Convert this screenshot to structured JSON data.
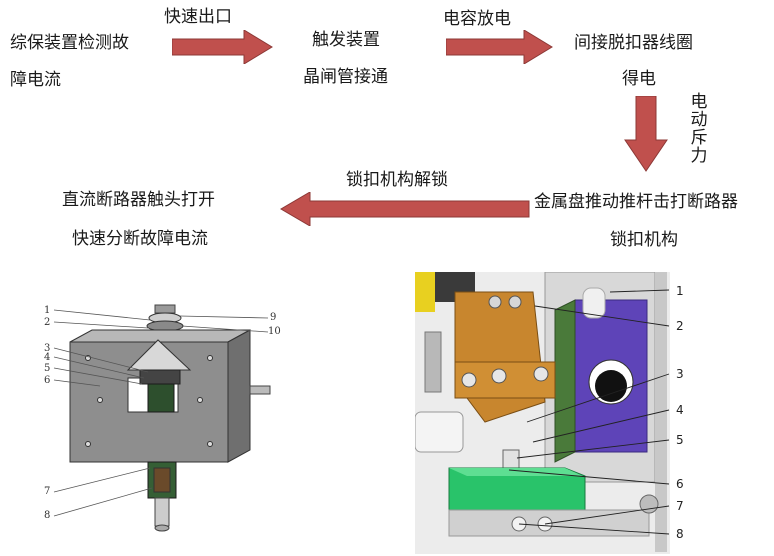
{
  "flow": {
    "step1_line1": "综保装置检测故",
    "step1_line2": "障电流",
    "arrow1_label": "快速出口",
    "step2_line1": "触发装置",
    "step2_line2": "晶闸管接通",
    "arrow2_label": "电容放电",
    "step3_line1": "间接脱扣器线圈",
    "step3_line2": "得电",
    "arrow3_label": [
      "电",
      "动",
      "斥",
      "力"
    ],
    "step4_line1": "金属盘推动推杆击打断路器",
    "step4_line2": "锁扣机构",
    "arrow4_label": "锁扣机构解锁",
    "step5_line1": "直流断路器触头打开",
    "step5_line2": "快速分断故障电流"
  },
  "left_figure": {
    "labels": [
      "1",
      "2",
      "3",
      "4",
      "5",
      "6",
      "7",
      "8",
      "9",
      "10"
    ]
  },
  "right_figure": {
    "labels": [
      "1",
      "2",
      "3",
      "4",
      "5",
      "6",
      "7",
      "8"
    ]
  },
  "colors": {
    "arrow_fill": "#c0504d",
    "arrow_stroke": "#8c3836"
  }
}
